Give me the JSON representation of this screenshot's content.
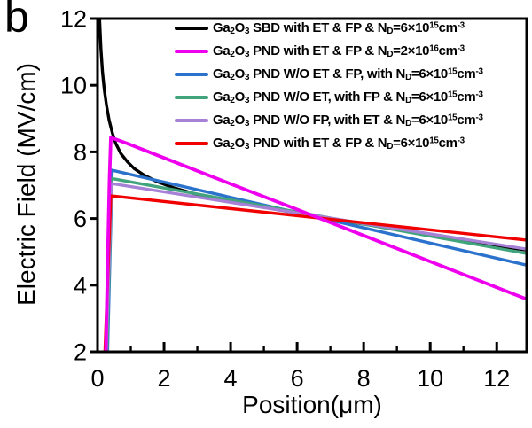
{
  "chart_data": {
    "type": "line",
    "panel_label": "b",
    "xlabel": "Position(μm)",
    "ylabel": "Electric Field (MV/cm)",
    "xlim": [
      0,
      12.9
    ],
    "ylim": [
      2,
      12
    ],
    "x_major_ticks": [
      0,
      2,
      4,
      6,
      8,
      10,
      12
    ],
    "x_minor_ticks": [
      1,
      3,
      5,
      7,
      9,
      11
    ],
    "y_major_ticks": [
      2,
      4,
      6,
      8,
      10,
      12
    ],
    "grid": false,
    "legend_position": "top-right",
    "axis_color": "#000000",
    "draw_order": [
      0,
      2,
      3,
      4,
      5,
      1
    ],
    "series": [
      {
        "name": "Ga2O3 SBD with ET & FP & ND=6e15cm-3",
        "legend_label": "Ga~2~O~3~ SBD with ET & FP & N~D~=6×10^15^cm^-3^",
        "color": "#000000",
        "line_width": 3.4,
        "points": [
          [
            0.06,
            12
          ],
          [
            0.1,
            11.1
          ],
          [
            0.15,
            10.4
          ],
          [
            0.2,
            9.9
          ],
          [
            0.27,
            9.4
          ],
          [
            0.35,
            8.95
          ],
          [
            0.45,
            8.55
          ],
          [
            0.55,
            8.25
          ],
          [
            0.7,
            7.95
          ],
          [
            0.9,
            7.7
          ],
          [
            1.1,
            7.5
          ],
          [
            1.4,
            7.3
          ],
          [
            1.8,
            7.1
          ],
          [
            2.3,
            6.92
          ],
          [
            3,
            6.72
          ],
          [
            4,
            6.52
          ],
          [
            5,
            6.34
          ],
          [
            6,
            6.16
          ],
          [
            7,
            5.99
          ],
          [
            8,
            5.83
          ],
          [
            9,
            5.67
          ],
          [
            10,
            5.5
          ],
          [
            11,
            5.34
          ],
          [
            12,
            5.18
          ],
          [
            12.9,
            5.05
          ]
        ]
      },
      {
        "name": "Ga2O3 PND with ET & FP & ND=2e16cm-3",
        "legend_label": "Ga~2~O~3~ PND with ET & FP & N~D~=2×10^16^cm^-3^",
        "color": "#EE00EE",
        "line_width": 3.8,
        "points": [
          [
            0.25,
            1.95
          ],
          [
            0.3,
            4.6
          ],
          [
            0.36,
            7.2
          ],
          [
            0.4,
            8.43
          ],
          [
            0.9,
            8.25
          ],
          [
            2,
            7.82
          ],
          [
            4,
            7.04
          ],
          [
            6,
            6.27
          ],
          [
            8,
            5.49
          ],
          [
            10,
            4.71
          ],
          [
            12,
            3.93
          ],
          [
            12.9,
            3.58
          ]
        ]
      },
      {
        "name": "Ga2O3 PND W/O ET & FP, with ND=6e15cm-3",
        "legend_label": "Ga~2~O~3~ PND W/O ET & FP, with N~D~=6×10^15^cm^-3^",
        "color": "#2B72CC",
        "line_width": 3.4,
        "points": [
          [
            0.3,
            1.95
          ],
          [
            0.44,
            7.45
          ],
          [
            12.9,
            4.6
          ]
        ]
      },
      {
        "name": "Ga2O3 PND W/O ET, with FP & ND=6e15cm-3",
        "legend_label": "Ga~2~O~3~ PND W/O ET, with FP & N~D~=6×10^15^cm^-3^",
        "color": "#41A47C",
        "line_width": 3.4,
        "points": [
          [
            0.28,
            1.95
          ],
          [
            0.43,
            7.2
          ],
          [
            12.9,
            4.95
          ]
        ]
      },
      {
        "name": "Ga2O3 PND W/O FP, with ET & ND=6e15cm-3",
        "legend_label": "Ga~2~O~3~ PND W/O FP, with ET & N~D~=6×10^15^cm^-3^",
        "color": "#A681D6",
        "line_width": 3.4,
        "points": [
          [
            0.26,
            1.95
          ],
          [
            0.42,
            7.05
          ],
          [
            12.9,
            5.08
          ]
        ]
      },
      {
        "name": "Ga2O3 PND with ET & FP & ND=6e15cm-3",
        "legend_label": "Ga~2~O~3~ PND with ET & FP & N~D~=6×10^15^cm^-3^",
        "color": "#F10000",
        "line_width": 3.4,
        "points": [
          [
            0.22,
            1.95
          ],
          [
            0.4,
            6.68
          ],
          [
            12.9,
            5.35
          ]
        ]
      }
    ]
  }
}
